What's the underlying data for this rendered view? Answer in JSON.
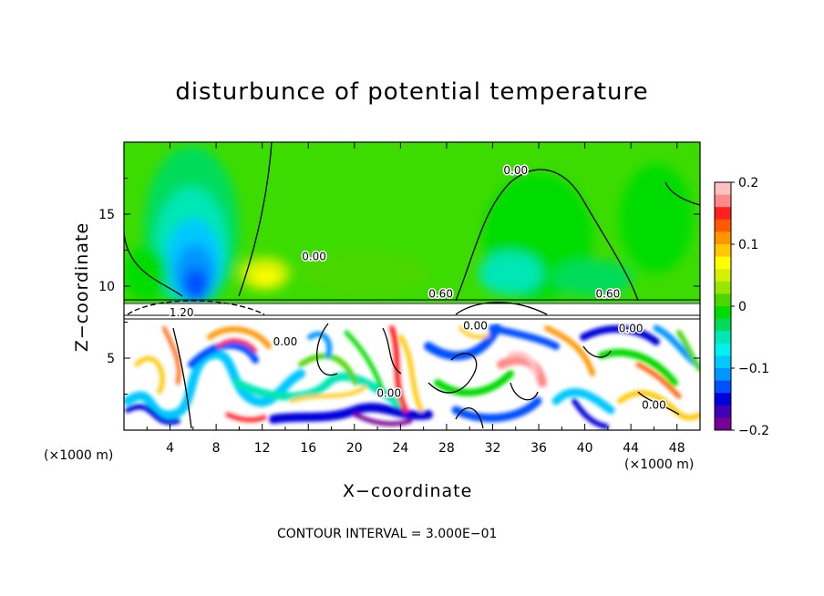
{
  "chart_data": {
    "type": "heatmap",
    "title": "disturbunce of potential temperature",
    "xlabel": "X−coordinate",
    "ylabel": "Z−coordinate",
    "x_unit_label_left": "(×1000 m)",
    "x_unit_label_right": "(×1000 m)",
    "footer": "CONTOUR INTERVAL = 3.000E−01",
    "xlim": [
      0,
      50
    ],
    "ylim": [
      0,
      20
    ],
    "x_ticks": [
      4,
      8,
      12,
      16,
      20,
      24,
      28,
      32,
      36,
      40,
      44,
      48
    ],
    "x_tick_labels": [
      "4",
      "8",
      "12",
      "16",
      "20",
      "24",
      "28",
      "32",
      "36",
      "40",
      "44",
      "48"
    ],
    "y_ticks": [
      5,
      10,
      15
    ],
    "y_tick_labels": [
      "5",
      "10",
      "15"
    ],
    "colorbar": {
      "range": [
        -0.2,
        0.2
      ],
      "ticks": [
        0.2,
        0.1,
        0,
        -0.1,
        -0.2
      ],
      "tick_labels": [
        "0.2",
        "0.1",
        "0",
        "−0.1",
        "−0.2"
      ],
      "colors": [
        "#ffc0c0",
        "#ff8a8a",
        "#ff2020",
        "#ff5a00",
        "#ff9600",
        "#ffc800",
        "#ffff00",
        "#d2f000",
        "#96e600",
        "#4cd700",
        "#00dc00",
        "#00dc5a",
        "#00e6b4",
        "#00f0f0",
        "#00c8ff",
        "#0096ff",
        "#0050ff",
        "#0000dc",
        "#4000b4",
        "#780096"
      ]
    },
    "contour_labels": [
      {
        "text": "0.00",
        "x": 16.5,
        "y": 11.8
      },
      {
        "text": "0.00",
        "x": 34,
        "y": 17.8
      },
      {
        "text": "0.60",
        "x": 27.5,
        "y": 9.2
      },
      {
        "text": "0.60",
        "x": 42,
        "y": 9.2
      },
      {
        "text": "1.20",
        "x": 5,
        "y": 7.9
      },
      {
        "text": "0.00",
        "x": 14,
        "y": 5.9
      },
      {
        "text": "0.00",
        "x": 30.5,
        "y": 7.0
      },
      {
        "text": "0.00",
        "x": 44,
        "y": 6.8
      },
      {
        "text": "0.00",
        "x": 23,
        "y": 2.3
      },
      {
        "text": "0.00",
        "x": 46,
        "y": 1.5
      }
    ]
  }
}
